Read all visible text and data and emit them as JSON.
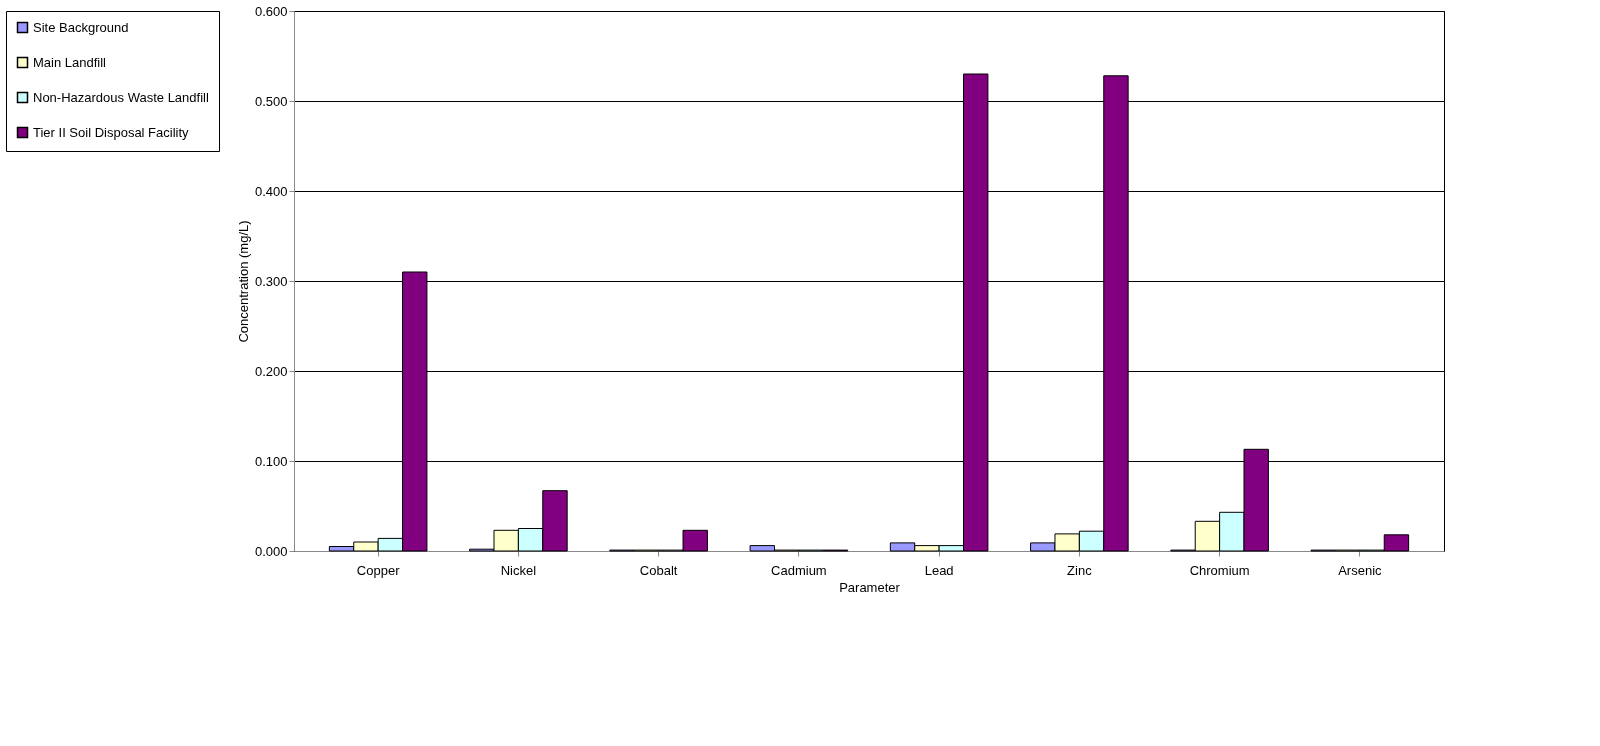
{
  "chart_data": {
    "type": "bar",
    "xlabel": "Parameter",
    "ylabel": "Concentration (mg/L)",
    "categories": [
      "Copper",
      "Nickel",
      "Cobalt",
      "Cadmium",
      "Lead",
      "Zinc",
      "Chromium",
      "Arsenic"
    ],
    "series": [
      {
        "name": "Site Background",
        "color": "#9999ff",
        "values": [
          0.005,
          0.002,
          0.001,
          0.006,
          0.009,
          0.009,
          0.001,
          0.001
        ]
      },
      {
        "name": "Main Landfill",
        "color": "#ffffcc",
        "values": [
          0.01,
          0.023,
          0.001,
          0.001,
          0.006,
          0.019,
          0.033,
          0.001
        ]
      },
      {
        "name": "Non-Hazardous Waste Landfill",
        "color": "#ccffff",
        "values": [
          0.014,
          0.025,
          0.001,
          0.001,
          0.006,
          0.022,
          0.043,
          0.001
        ]
      },
      {
        "name": "Tier II Soil Disposal Facility",
        "color": "#800080",
        "values": [
          0.31,
          0.067,
          0.023,
          0.001,
          0.53,
          0.528,
          0.113,
          0.018
        ]
      }
    ],
    "ylim": [
      0,
      0.6
    ],
    "yticks": [
      {
        "value": 0,
        "label": "0.000"
      },
      {
        "value": 0.1,
        "label": "0.100"
      },
      {
        "value": 0.2,
        "label": "0.200"
      },
      {
        "value": 0.3,
        "label": "0.300"
      },
      {
        "value": 0.4,
        "label": "0.400"
      },
      {
        "value": 0.5,
        "label": "0.500"
      },
      {
        "value": 0.6,
        "label": "0.600"
      }
    ],
    "grid": "y",
    "legend": "left"
  }
}
